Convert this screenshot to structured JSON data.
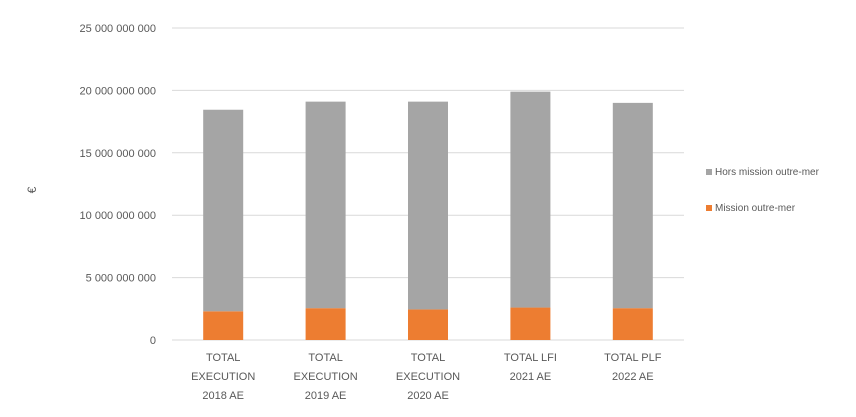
{
  "chart_data": {
    "type": "bar",
    "stacked": true,
    "categories": [
      [
        "TOTAL",
        "EXECUTION",
        "2018 AE"
      ],
      [
        "TOTAL",
        "EXECUTION",
        "2019 AE"
      ],
      [
        "TOTAL",
        "EXECUTION",
        "2020 AE"
      ],
      [
        "TOTAL LFI",
        "2021 AE"
      ],
      [
        "TOTAL PLF",
        "2022 AE"
      ]
    ],
    "series": [
      {
        "name": "Mission outre-mer",
        "color": "#ED7D31",
        "values": [
          2300000000,
          2550000000,
          2450000000,
          2600000000,
          2550000000
        ]
      },
      {
        "name": "Hors mission outre-mer",
        "color": "#A5A5A5",
        "values": [
          16150000000,
          16550000000,
          16650000000,
          17300000000,
          16450000000
        ]
      }
    ],
    "ylabel": "€",
    "ylim": [
      0,
      25000000000
    ],
    "yticks": [
      {
        "value": 0,
        "label": "0"
      },
      {
        "value": 5000000000,
        "label": "5 000 000 000"
      },
      {
        "value": 10000000000,
        "label": "10 000 000 000"
      },
      {
        "value": 15000000000,
        "label": "15 000 000 000"
      },
      {
        "value": 20000000000,
        "label": "20 000 000 000"
      },
      {
        "value": 25000000000,
        "label": "25 000 000 000"
      }
    ],
    "grid": true,
    "legend_position": "right"
  },
  "legend": {
    "items": [
      {
        "label": "Hors mission outre-mer",
        "color": "#A5A5A5"
      },
      {
        "label": "Mission outre-mer",
        "color": "#ED7D31"
      }
    ]
  }
}
